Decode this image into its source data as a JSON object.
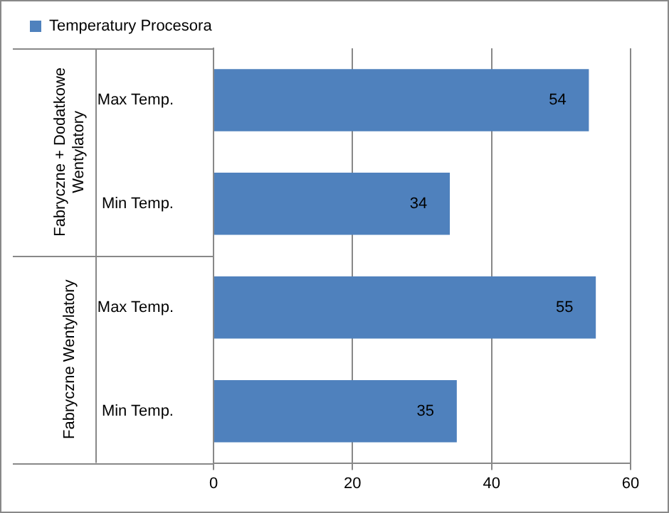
{
  "chart_data": {
    "type": "bar",
    "orientation": "horizontal",
    "categories": [
      "Max Temp.",
      "Min Temp.",
      "Max Temp.",
      "Min Temp."
    ],
    "series": [
      {
        "name": "Temperatury Procesora",
        "color": "#4f81bd",
        "values": [
          54,
          34,
          55,
          35
        ]
      }
    ],
    "xlim": [
      0,
      60
    ],
    "xticks": [
      0,
      20,
      40,
      60
    ],
    "grid": "x",
    "legend": "top left",
    "data_labels": true,
    "annotations": [
      "Fabryczne + Dodatkowe Wentylatory",
      "Fabryczne Wentylatory"
    ]
  }
}
